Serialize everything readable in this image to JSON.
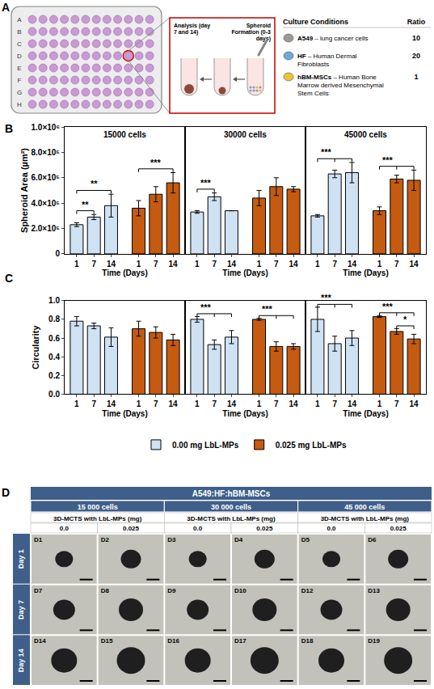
{
  "panel_a": {
    "letter": "A",
    "plate_rows": [
      "A",
      "B",
      "C",
      "D",
      "E",
      "F",
      "G",
      "H"
    ],
    "steps": [
      "Analysis (day 7 and 14)",
      "Spheroid Formation (0-3 days)"
    ],
    "table": {
      "header": [
        "Culture Conditions",
        "Ratio"
      ],
      "rows": [
        {
          "name": "A549",
          "description": "– lung cancer cells",
          "ratio": 10,
          "color": "#9a9a9a"
        },
        {
          "name": "HF",
          "description": "– Human Dermal Fibroblasts",
          "ratio": 20,
          "color": "#6fa8dc"
        },
        {
          "name": "hBM-MSCs",
          "description": "– Human Bone Marrow derived Mesenchymal Stem Cells",
          "ratio": 1,
          "color": "#f1c232"
        }
      ]
    }
  },
  "chart_data": [
    {
      "type": "bar",
      "letter": "B",
      "y_label": "Spheroid Area (µm²)",
      "x_label": "Time (Days)",
      "grid": false,
      "ylim": [
        0,
        1000000
      ],
      "yticks": [
        0,
        {
          "value": 200000,
          "label": "2.0×10⁵"
        },
        {
          "value": 400000,
          "label": "4.0×10⁵"
        },
        {
          "value": 600000,
          "label": "6.0×10⁵"
        },
        {
          "value": 800000,
          "label": "8.0×10⁵"
        },
        {
          "value": 1000000,
          "label": "1.0×10⁶"
        }
      ],
      "panels": [
        {
          "title": "15000 cells",
          "categories": [
            "1",
            "7",
            "14"
          ],
          "series": [
            {
              "color": "#cfe2f3",
              "values": [
                230000,
                290000,
                380000
              ],
              "errors": [
                15000,
                20000,
                90000
              ],
              "significance": [
                {
                  "text": "**",
                  "from": "1",
                  "to": [
                    "7"
                  ]
                },
                {
                  "text": "**",
                  "from": "1",
                  "to": [
                    "14"
                  ]
                }
              ]
            },
            {
              "color": "#c55a11",
              "values": [
                360000,
                470000,
                560000
              ],
              "errors": [
                60000,
                60000,
                80000
              ],
              "significance": [
                {
                  "text": "***",
                  "from": "1",
                  "to": [
                    "14"
                  ]
                }
              ]
            }
          ]
        },
        {
          "title": "30000 cells",
          "categories": [
            "1",
            "7",
            "14"
          ],
          "series": [
            {
              "color": "#cfe2f3",
              "values": [
                330000,
                450000,
                340000
              ],
              "errors": [
                10000,
                30000,
                0
              ],
              "significance": [
                {
                  "text": "***",
                  "from": "1",
                  "to": [
                    "7"
                  ]
                }
              ]
            },
            {
              "color": "#c55a11",
              "values": [
                440000,
                530000,
                510000
              ],
              "errors": [
                60000,
                70000,
                20000
              ]
            }
          ]
        },
        {
          "title": "45000 cells",
          "categories": [
            "1",
            "7",
            "14"
          ],
          "series": [
            {
              "color": "#cfe2f3",
              "values": [
                300000,
                630000,
                640000
              ],
              "errors": [
                10000,
                30000,
                80000
              ],
              "significance": [
                {
                  "text": "***",
                  "from": "1",
                  "to": [
                    "7",
                    "14"
                  ]
                }
              ]
            },
            {
              "color": "#c55a11",
              "values": [
                340000,
                590000,
                580000
              ],
              "errors": [
                30000,
                30000,
                80000
              ],
              "significance": [
                {
                  "text": "***",
                  "from": "1",
                  "to": [
                    "7",
                    "14"
                  ]
                }
              ]
            }
          ]
        }
      ]
    },
    {
      "type": "bar",
      "letter": "C",
      "y_label": "Circularity",
      "x_label": "Time (Days)",
      "grid": false,
      "legend": "bottom",
      "ylim": [
        0,
        1
      ],
      "yticks": [
        {
          "value": 0,
          "label": "0.0"
        },
        {
          "value": 0.2,
          "label": "0.2"
        },
        {
          "value": 0.4,
          "label": "0.4"
        },
        {
          "value": 0.6,
          "label": "0.6"
        },
        {
          "value": 0.8,
          "label": "0.8"
        },
        {
          "value": 1,
          "label": "1.0"
        }
      ],
      "panels": [
        {
          "categories": [
            "1",
            "7",
            "14"
          ],
          "series": [
            {
              "name": "0.00 mg LbL-MPs",
              "color": "#cfe2f3",
              "values": [
                0.78,
                0.73,
                0.61
              ],
              "errors": [
                0.05,
                0.03,
                0.1
              ]
            },
            {
              "name": "0.025 mg LbL-MPs",
              "color": "#c55a11",
              "values": [
                0.7,
                0.66,
                0.58
              ],
              "errors": [
                0.08,
                0.06,
                0.06
              ]
            }
          ]
        },
        {
          "categories": [
            "1",
            "7",
            "14"
          ],
          "series": [
            {
              "name": "0.00 mg LbL-MPs",
              "color": "#cfe2f3",
              "values": [
                0.8,
                0.53,
                0.61
              ],
              "errors": [
                0.03,
                0.05,
                0.07
              ],
              "significance": [
                {
                  "text": "***",
                  "from": "1",
                  "to": [
                    "7",
                    "14"
                  ]
                }
              ]
            },
            {
              "name": "0.025 mg LbL-MPs",
              "color": "#c55a11",
              "values": [
                0.8,
                0.51,
                0.51
              ],
              "errors": [
                0.01,
                0.05,
                0.03
              ],
              "significance": [
                {
                  "text": "***",
                  "from": "1",
                  "to": [
                    "7",
                    "14"
                  ]
                }
              ]
            }
          ]
        },
        {
          "categories": [
            "1",
            "7",
            "14"
          ],
          "series": [
            {
              "name": "0.00 mg LbL-MPs",
              "color": "#cfe2f3",
              "values": [
                0.8,
                0.54,
                0.6
              ],
              "errors": [
                0.13,
                0.08,
                0.08
              ],
              "significance": [
                {
                  "text": "***",
                  "from": "1",
                  "to": [
                    "7",
                    "14"
                  ]
                }
              ]
            },
            {
              "name": "0.025 mg LbL-MPs",
              "color": "#c55a11",
              "values": [
                0.83,
                0.67,
                0.59
              ],
              "errors": [
                0.01,
                0.03,
                0.05
              ],
              "significance": [
                {
                  "text": "*",
                  "from": "7",
                  "to": [
                    "14"
                  ]
                },
                {
                  "text": "***",
                  "from": "1",
                  "to": [
                    "7",
                    "14"
                  ]
                }
              ]
            }
          ]
        }
      ]
    }
  ],
  "panel_d": {
    "letter": "D",
    "header": "A549:HF:hBM-MSCs",
    "groups": [
      "15 000 cells",
      "30 000 cells",
      "45 000 cells"
    ],
    "subheader": "3D-MCTS with LbL-MPs (mg)",
    "columns": [
      "0.0",
      "0.025"
    ],
    "rows": [
      {
        "label": "Day 1",
        "cells": [
          "D1",
          "D2",
          "D3",
          "D4",
          "D5",
          "D6"
        ]
      },
      {
        "label": "Day 7",
        "cells": [
          "D7",
          "D8",
          "D9",
          "D10",
          "D12",
          "D13"
        ]
      },
      {
        "label": "Day 14",
        "cells": [
          "D14",
          "D15",
          "D16",
          "D17",
          "D18",
          "D19"
        ]
      }
    ]
  }
}
